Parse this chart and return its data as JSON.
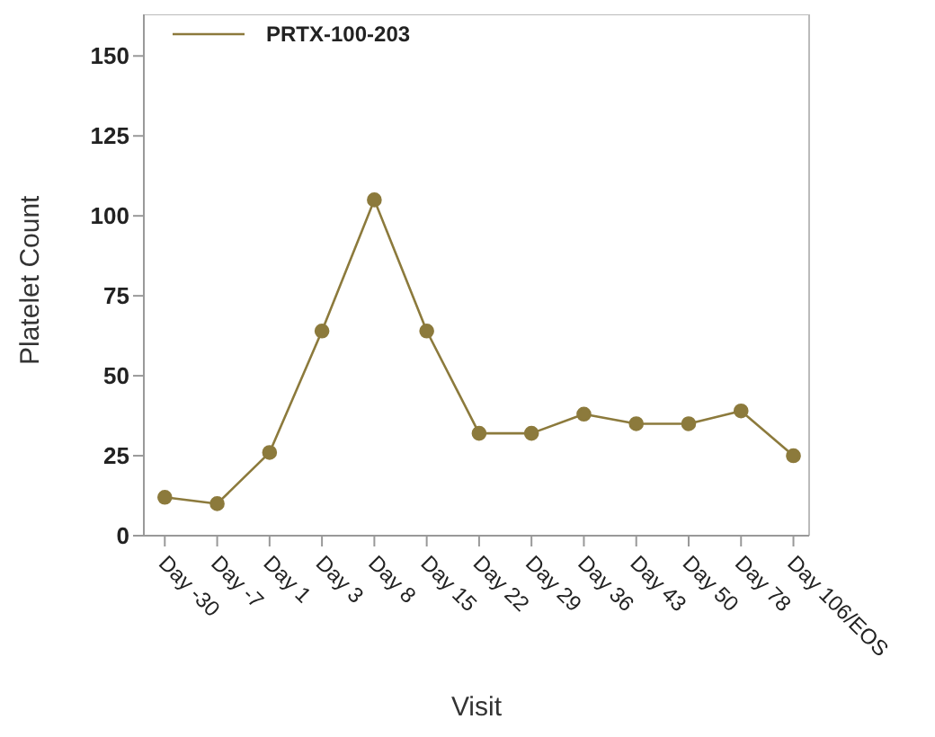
{
  "chart_data": {
    "type": "line",
    "xlabel": "Visit",
    "ylabel": "Platelet Count",
    "categories": [
      "Day -30",
      "Day -7",
      "Day 1",
      "Day 3",
      "Day 8",
      "Day 15",
      "Day 22",
      "Day 29",
      "Day 36",
      "Day 43",
      "Day 50",
      "Day 78",
      "Day 106/EOS"
    ],
    "series": [
      {
        "name": "PRTX-100-203",
        "color": "#8c7a3c",
        "values": [
          12,
          10,
          26,
          64,
          105,
          64,
          32,
          32,
          38,
          35,
          35,
          39,
          25
        ]
      }
    ],
    "ylim": [
      0,
      163
    ],
    "yticks": [
      0,
      25,
      50,
      75,
      100,
      125,
      150
    ],
    "grid": false,
    "legend": "top left",
    "marker": "circle",
    "line_style": "solid"
  }
}
